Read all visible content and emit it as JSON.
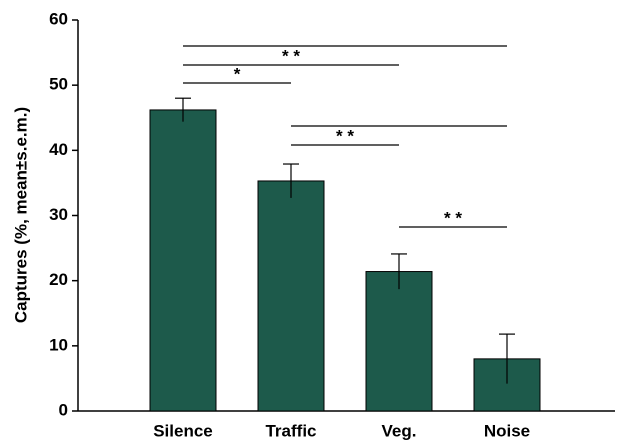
{
  "chart_data": {
    "type": "bar",
    "y_label": "Captures (%, mean±s.e.m.)",
    "categories": [
      "Silence",
      "Traffic",
      "Veg.",
      "Noise"
    ],
    "values": [
      46.2,
      35.3,
      21.4,
      8.0
    ],
    "errors": [
      1.8,
      2.6,
      2.7,
      3.8
    ],
    "color": "#1d5a4b",
    "ylim": [
      0,
      60
    ],
    "yticks": [
      0,
      10,
      20,
      30,
      40,
      50,
      60
    ],
    "comparisons": [
      {
        "from": "Silence",
        "to": "Noise"
      },
      {
        "from": "Silence",
        "to": "Veg.",
        "label": "* *"
      },
      {
        "from": "Silence",
        "to": "Traffic",
        "label": "*"
      },
      {
        "from": "Traffic",
        "to": "Noise"
      },
      {
        "from": "Traffic",
        "to": "Veg.",
        "label": "* *"
      },
      {
        "from": "Veg.",
        "to": "Noise",
        "label": "* *"
      }
    ]
  }
}
